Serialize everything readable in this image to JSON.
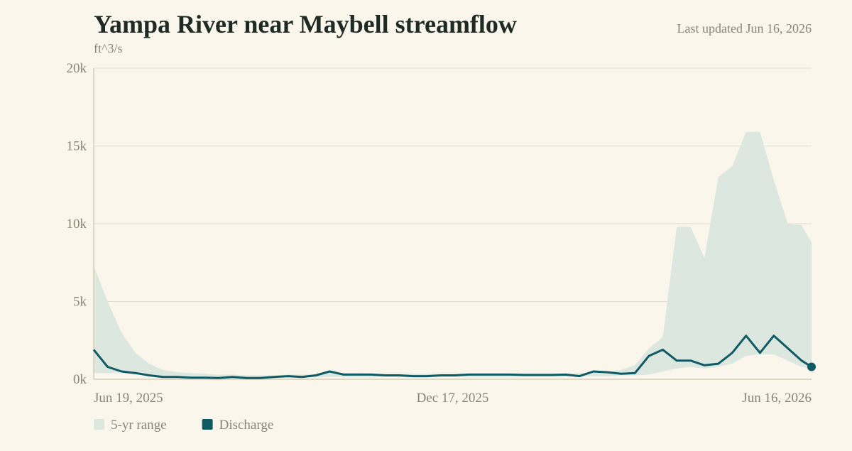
{
  "chart_data": {
    "type": "line",
    "title": "Yampa River near Maybell streamflow",
    "subtitle": "Last updated Jun 16, 2026",
    "y_label": "ft^3/s",
    "x": [
      "2025-06-19",
      "2025-06-26",
      "2025-07-03",
      "2025-07-10",
      "2025-07-17",
      "2025-07-24",
      "2025-07-31",
      "2025-08-07",
      "2025-08-14",
      "2025-08-21",
      "2025-08-28",
      "2025-09-04",
      "2025-09-11",
      "2025-09-18",
      "2025-09-25",
      "2025-10-02",
      "2025-10-09",
      "2025-10-16",
      "2025-10-23",
      "2025-10-30",
      "2025-11-06",
      "2025-11-13",
      "2025-11-20",
      "2025-11-27",
      "2025-12-04",
      "2025-12-11",
      "2025-12-18",
      "2025-12-25",
      "2026-01-01",
      "2026-01-08",
      "2026-01-15",
      "2026-01-22",
      "2026-01-29",
      "2026-02-05",
      "2026-02-12",
      "2026-02-19",
      "2026-02-26",
      "2026-03-05",
      "2026-03-12",
      "2026-03-19",
      "2026-03-26",
      "2026-04-02",
      "2026-04-09",
      "2026-04-16",
      "2026-04-23",
      "2026-04-30",
      "2026-05-07",
      "2026-05-14",
      "2026-05-21",
      "2026-05-28",
      "2026-06-04",
      "2026-06-11",
      "2026-06-16"
    ],
    "series": [
      {
        "name": "5-yr range",
        "color": "#dce7e0",
        "high": [
          7300,
          5000,
          3000,
          1700,
          1000,
          600,
          450,
          400,
          350,
          300,
          300,
          250,
          250,
          250,
          300,
          300,
          300,
          450,
          400,
          400,
          350,
          350,
          350,
          350,
          350,
          350,
          350,
          350,
          350,
          350,
          350,
          350,
          350,
          350,
          350,
          400,
          450,
          500,
          600,
          900,
          2000,
          2700,
          9800,
          9800,
          7800,
          13000,
          13700,
          15900,
          15900,
          12800,
          10000,
          9900,
          8800
        ],
        "low": [
          400,
          400,
          400,
          300,
          250,
          200,
          150,
          150,
          120,
          100,
          100,
          80,
          80,
          100,
          120,
          120,
          120,
          150,
          150,
          150,
          150,
          150,
          150,
          150,
          150,
          150,
          150,
          150,
          150,
          150,
          150,
          150,
          150,
          150,
          150,
          200,
          200,
          200,
          250,
          250,
          300,
          500,
          700,
          800,
          700,
          800,
          1000,
          1500,
          1600,
          1600,
          1200,
          800,
          700
        ]
      },
      {
        "name": "Discharge",
        "color": "#0f5a63",
        "values": [
          1900,
          800,
          500,
          400,
          250,
          150,
          150,
          100,
          100,
          80,
          150,
          80,
          80,
          150,
          200,
          150,
          250,
          500,
          300,
          300,
          300,
          250,
          250,
          200,
          200,
          250,
          250,
          300,
          300,
          300,
          300,
          280,
          280,
          280,
          300,
          200,
          500,
          450,
          350,
          400,
          1500,
          1900,
          1200,
          1200,
          900,
          1000,
          1700,
          2800,
          1700,
          2800,
          2000,
          1200,
          800
        ]
      }
    ],
    "xlim": [
      "2025-06-19",
      "2026-06-16"
    ],
    "xticks": [
      {
        "value": "2025-06-19",
        "label": "Jun 19, 2025"
      },
      {
        "value": "2025-12-17",
        "label": "Dec 17, 2025"
      },
      {
        "value": "2026-06-16",
        "label": "Jun 16, 2026"
      }
    ],
    "ylim": [
      0,
      20000
    ],
    "yticks": [
      {
        "value": 0,
        "label": "0k"
      },
      {
        "value": 5000,
        "label": "5k"
      },
      {
        "value": 10000,
        "label": "10k"
      },
      {
        "value": 15000,
        "label": "15k"
      },
      {
        "value": 20000,
        "label": "20k"
      }
    ],
    "grid": true
  }
}
